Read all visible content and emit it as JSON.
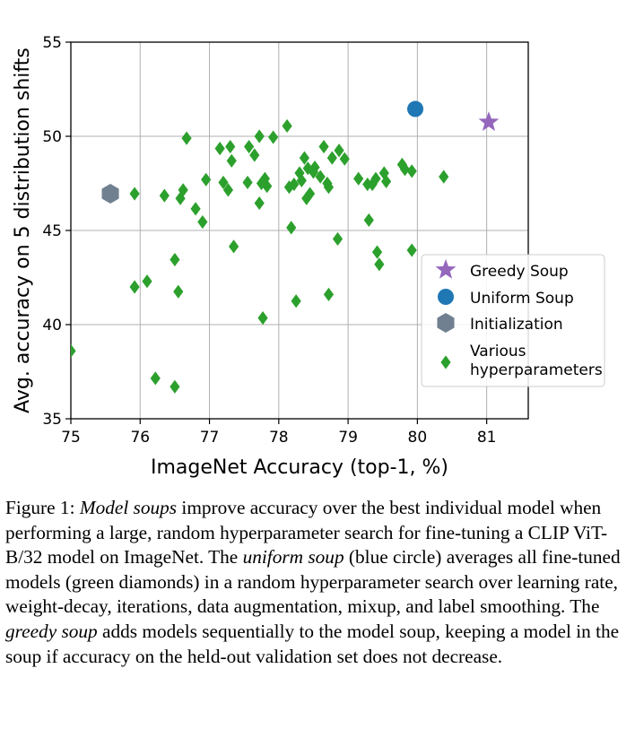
{
  "chart_data": {
    "type": "scatter",
    "xlabel": "ImageNet Accuracy (top-1, %)",
    "ylabel": "Avg. accuracy on 5 distribution shifts",
    "xlim": [
      75,
      81.6
    ],
    "ylim": [
      35,
      55
    ],
    "xticks": [
      "75",
      "76",
      "77",
      "78",
      "79",
      "80",
      "81"
    ],
    "yticks": [
      "35",
      "40",
      "45",
      "50",
      "55"
    ],
    "grid": true,
    "legend_position": "center-right",
    "series": [
      {
        "name": "Greedy Soup",
        "marker": "star",
        "color": "#9467bd",
        "points": [
          [
            81.03,
            50.75
          ]
        ]
      },
      {
        "name": "Uniform Soup",
        "marker": "circle",
        "color": "#1f77b4",
        "points": [
          [
            79.97,
            51.45
          ]
        ]
      },
      {
        "name": "Initialization",
        "marker": "hexagon",
        "color": "#708090",
        "points": [
          [
            75.57,
            46.95
          ]
        ]
      },
      {
        "name": "Various hyperparameters",
        "legend_lines": [
          "Various",
          "hyperparameters"
        ],
        "marker": "diamond",
        "color": "#2ca02c",
        "points": [
          [
            75.0,
            38.6
          ],
          [
            75.92,
            46.95
          ],
          [
            75.92,
            42.0
          ],
          [
            76.1,
            42.3
          ],
          [
            76.22,
            37.15
          ],
          [
            76.35,
            46.85
          ],
          [
            76.5,
            43.45
          ],
          [
            76.5,
            36.7
          ],
          [
            76.55,
            41.75
          ],
          [
            76.58,
            46.7
          ],
          [
            76.62,
            47.15
          ],
          [
            76.67,
            49.9
          ],
          [
            76.8,
            46.15
          ],
          [
            76.9,
            45.45
          ],
          [
            76.95,
            47.7
          ],
          [
            77.15,
            49.35
          ],
          [
            77.2,
            47.55
          ],
          [
            77.27,
            47.15
          ],
          [
            77.3,
            49.45
          ],
          [
            77.32,
            48.7
          ],
          [
            77.35,
            44.15
          ],
          [
            77.55,
            47.55
          ],
          [
            77.57,
            49.45
          ],
          [
            77.65,
            49.0
          ],
          [
            77.72,
            46.45
          ],
          [
            77.72,
            50.0
          ],
          [
            77.75,
            47.5
          ],
          [
            77.77,
            40.35
          ],
          [
            77.8,
            47.75
          ],
          [
            77.83,
            47.35
          ],
          [
            77.92,
            49.95
          ],
          [
            78.12,
            50.55
          ],
          [
            78.15,
            47.3
          ],
          [
            78.18,
            45.15
          ],
          [
            78.22,
            47.45
          ],
          [
            78.25,
            41.25
          ],
          [
            78.3,
            48.05
          ],
          [
            78.33,
            47.65
          ],
          [
            78.37,
            48.85
          ],
          [
            78.4,
            46.7
          ],
          [
            78.42,
            48.3
          ],
          [
            78.45,
            46.95
          ],
          [
            78.5,
            48.1
          ],
          [
            78.52,
            48.35
          ],
          [
            78.6,
            47.85
          ],
          [
            78.65,
            49.45
          ],
          [
            78.7,
            47.5
          ],
          [
            78.72,
            47.3
          ],
          [
            78.72,
            41.6
          ],
          [
            78.77,
            48.85
          ],
          [
            78.85,
            44.55
          ],
          [
            78.87,
            49.25
          ],
          [
            78.95,
            48.8
          ],
          [
            79.15,
            47.75
          ],
          [
            79.28,
            47.45
          ],
          [
            79.3,
            45.55
          ],
          [
            79.35,
            47.45
          ],
          [
            79.4,
            47.75
          ],
          [
            79.42,
            43.85
          ],
          [
            79.45,
            43.2
          ],
          [
            79.52,
            48.05
          ],
          [
            79.55,
            47.6
          ],
          [
            79.78,
            48.5
          ],
          [
            79.82,
            48.25
          ],
          [
            79.92,
            43.95
          ],
          [
            79.92,
            48.15
          ],
          [
            80.38,
            47.85
          ]
        ]
      }
    ]
  },
  "caption": {
    "label": "Figure 1: ",
    "s1": "Model soups",
    "s2": " improve accuracy over the best individual model when performing a large, random hyperparameter search for fine-tuning a CLIP ViT-B/32 model on ImageNet. The ",
    "s3": "uniform soup",
    "s4": " (blue circle) averages all fine-tuned models (green diamonds) in a random hyperparameter search over learning rate, weight-decay, iterations, data augmentation, mixup, and label smoothing. The ",
    "s5": "greedy soup",
    "s6": " adds models sequentially to the model soup, keeping a model in the soup if accuracy on the held-out validation set does not decrease."
  }
}
